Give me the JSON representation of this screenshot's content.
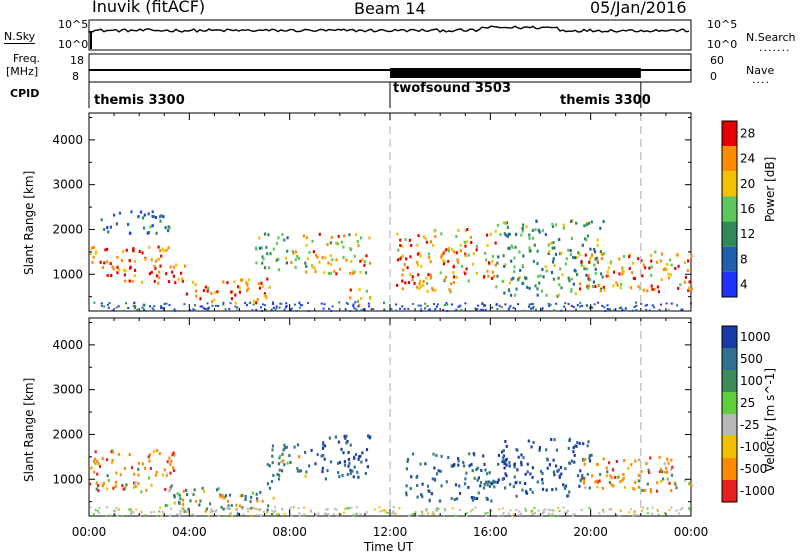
{
  "header": {
    "title": "Inuvik (fitACF)",
    "beam": "Beam 14",
    "date": "05/Jan/2016"
  },
  "summary": {
    "nsky_label": "N.Sky",
    "nsky_ticks": [
      "10^5",
      "10^0"
    ],
    "nsearch_label": "N.Search",
    "nsearch_ticks": [
      "10^5",
      "10^0"
    ],
    "freq_label": "Freq.",
    "freq_unit": "[MHz]",
    "freq_ticks": [
      "18",
      "8"
    ],
    "nave_label": "Nave",
    "nave_ticks": [
      "60",
      "0"
    ],
    "cpid_label": "CPID",
    "cpid_segments": [
      {
        "label": "themis 3300",
        "start_hour": 0,
        "end_hour": 12
      },
      {
        "label": "twofsound 3503",
        "start_hour": 12,
        "end_hour": 22
      },
      {
        "label": "themis 3300",
        "start_hour": 22,
        "end_hour": 24
      }
    ]
  },
  "chart_data": [
    {
      "type": "heatmap",
      "parameter": "power",
      "ylabel": "Slant Range [km]",
      "yticks": [
        1000,
        2000,
        3000,
        4000
      ],
      "ylim": [
        180,
        4600
      ],
      "xlim_hours": [
        0,
        24
      ],
      "xticks": [
        "00:00",
        "04:00",
        "08:00",
        "12:00",
        "16:00",
        "20:00",
        "00:00"
      ],
      "colorbar": {
        "label": "Power [dB]",
        "ticks": [
          "28",
          "24",
          "20",
          "16",
          "12",
          "8",
          "4"
        ],
        "range": [
          0,
          30
        ]
      },
      "regions": [
        {
          "t0": 0.0,
          "t1": 3.8,
          "r0": 800,
          "r1": 1650,
          "value": 27
        },
        {
          "t0": 0.3,
          "t1": 3.2,
          "r0": 1900,
          "r1": 2400,
          "value": 11
        },
        {
          "t0": 3.8,
          "t1": 7.2,
          "r0": 350,
          "r1": 900,
          "value": 26
        },
        {
          "t0": 6.6,
          "t1": 8.0,
          "r0": 1100,
          "r1": 1900,
          "value": 16
        },
        {
          "t0": 8.0,
          "t1": 11.2,
          "r0": 1000,
          "r1": 1900,
          "value": 22
        },
        {
          "t0": 10.3,
          "t1": 11.2,
          "r0": 300,
          "r1": 700,
          "value": 26
        },
        {
          "t0": 12.2,
          "t1": 16.2,
          "r0": 600,
          "r1": 2000,
          "value": 25
        },
        {
          "t0": 16.2,
          "t1": 20.5,
          "r0": 500,
          "r1": 2200,
          "value": 15
        },
        {
          "t0": 19.5,
          "t1": 24.0,
          "r0": 600,
          "r1": 1500,
          "value": 25
        }
      ]
    },
    {
      "type": "heatmap",
      "parameter": "velocity",
      "ylabel": "Slant Range [km]",
      "yticks": [
        1000,
        2000,
        3000,
        4000
      ],
      "ylim": [
        180,
        4600
      ],
      "xlim_hours": [
        0,
        24
      ],
      "xticks": [
        "00:00",
        "04:00",
        "08:00",
        "12:00",
        "16:00",
        "20:00",
        "00:00"
      ],
      "xlabel": "Time UT",
      "colorbar": {
        "label": "Velocity [m s^-1]",
        "ticks": [
          "1000",
          "500",
          "100",
          "25",
          "-25",
          "-100",
          "-500",
          "-1000"
        ],
        "range": [
          -1000,
          1000
        ]
      },
      "regions": [
        {
          "t0": 0.0,
          "t1": 3.5,
          "r0": 700,
          "r1": 1650,
          "value": -300
        },
        {
          "t0": 3.0,
          "t1": 7.5,
          "r0": 200,
          "r1": 800,
          "value": 150
        },
        {
          "t0": 7.0,
          "t1": 8.8,
          "r0": 900,
          "r1": 1800,
          "value": 300
        },
        {
          "t0": 8.8,
          "t1": 11.2,
          "r0": 1000,
          "r1": 2000,
          "value": 900
        },
        {
          "t0": 12.5,
          "t1": 16.0,
          "r0": 500,
          "r1": 1600,
          "value": 600
        },
        {
          "t0": 16.0,
          "t1": 20.0,
          "r0": 600,
          "r1": 1900,
          "value": 800
        },
        {
          "t0": 19.5,
          "t1": 24.0,
          "r0": 700,
          "r1": 1500,
          "value": -300
        }
      ]
    }
  ]
}
